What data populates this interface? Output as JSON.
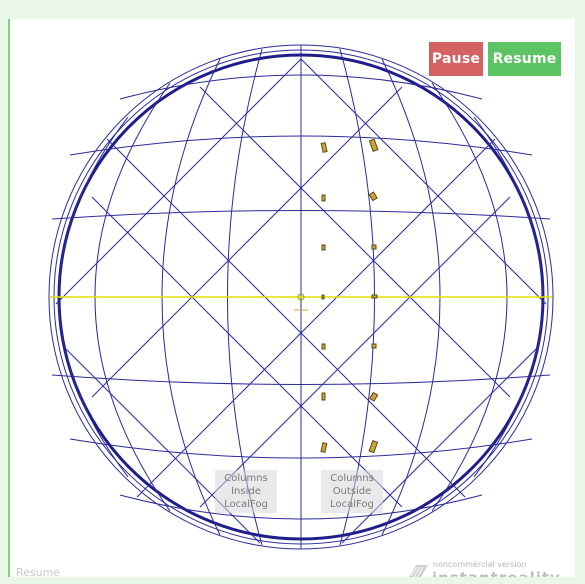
{
  "controls": {
    "pause_label": "Pause",
    "resume_label": "Resume"
  },
  "labels": {
    "columns_inside": "Columns\nInside\nLocalFog",
    "columns_outside": "Columns\nOutside\nLocalFog"
  },
  "watermark": {
    "small": "noncommercial version",
    "big": "instantreality"
  },
  "status": {
    "text": "Resume"
  },
  "colors": {
    "frame_bg": "#e8f7e8",
    "pause": "#d46262",
    "resume": "#5dc463",
    "wireframe": "#2b2b9a",
    "axis": "#e0e000",
    "columns": "#c9a43a"
  },
  "icons": {
    "watermark_logo": "instantreality-logo-icon"
  }
}
